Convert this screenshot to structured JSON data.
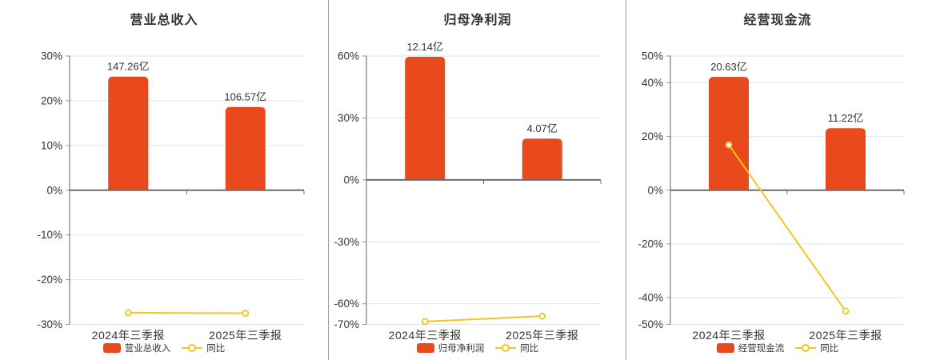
{
  "figure": {
    "background": "#ffffff",
    "divider_color": "#999999"
  },
  "palette": {
    "bar": "#e8491d",
    "line": "#f5c51d",
    "grid": "#dce4ee",
    "zero_axis": "#6b6b6b",
    "axis": "#606060",
    "tick": "#999999",
    "text": "#333333",
    "marker_fill": "#ffffff"
  },
  "chart_data": [
    {
      "type": "bar",
      "title": "营业总收入",
      "categories": [
        "2024年三季报",
        "2025年三季报"
      ],
      "ylim": [
        -30,
        30
      ],
      "grid": true,
      "legend_position": "bottom",
      "yticks": [
        {
          "label": "30%",
          "value": 30
        },
        {
          "label": "20%",
          "value": 20
        },
        {
          "label": "10%",
          "value": 10
        },
        {
          "label": "0%",
          "value": 0
        },
        {
          "label": "-10%",
          "value": -10
        },
        {
          "label": "-20%",
          "value": -20
        },
        {
          "label": "-30%",
          "value": -30
        }
      ],
      "series": [
        {
          "type": "bar",
          "name": "营业总收入",
          "values": [
            147.26,
            106.57
          ],
          "labels": [
            "147.26亿",
            "106.57亿"
          ],
          "plotted_pct": [
            25.4,
            18.6
          ]
        },
        {
          "type": "line",
          "name": "同比",
          "values_pct": [
            -27.4,
            -27.5
          ]
        }
      ]
    },
    {
      "type": "bar",
      "title": "归母净利润",
      "categories": [
        "2024年三季报",
        "2025年三季报"
      ],
      "ylim": [
        -70,
        60
      ],
      "grid": true,
      "legend_position": "bottom",
      "yticks": [
        {
          "label": "60%",
          "value": 60
        },
        {
          "label": "30%",
          "value": 30
        },
        {
          "label": "0%",
          "value": 0
        },
        {
          "label": "-30%",
          "value": -30
        },
        {
          "label": "-60%",
          "value": -60
        },
        {
          "label": "-70%",
          "value": -70
        }
      ],
      "series": [
        {
          "type": "bar",
          "name": "归母净利润",
          "values": [
            12.14,
            4.07
          ],
          "labels": [
            "12.14亿",
            "4.07亿"
          ],
          "plotted_pct": [
            59.6,
            20.0
          ]
        },
        {
          "type": "line",
          "name": "同比",
          "values_pct": [
            -68.6,
            -66.0
          ]
        }
      ]
    },
    {
      "type": "bar",
      "title": "经营现金流",
      "categories": [
        "2024年三季报",
        "2025年三季报"
      ],
      "ylim": [
        -50,
        50
      ],
      "grid": true,
      "legend_position": "bottom",
      "yticks": [
        {
          "label": "50%",
          "value": 50
        },
        {
          "label": "40%",
          "value": 40
        },
        {
          "label": "20%",
          "value": 20
        },
        {
          "label": "0%",
          "value": 0
        },
        {
          "label": "-20%",
          "value": -20
        },
        {
          "label": "-40%",
          "value": -40
        },
        {
          "label": "-50%",
          "value": -50
        }
      ],
      "series": [
        {
          "type": "bar",
          "name": "经营现金流",
          "values": [
            20.63,
            11.22
          ],
          "labels": [
            "20.63亿",
            "11.22亿"
          ],
          "plotted_pct": [
            42.2,
            23.1
          ]
        },
        {
          "type": "line",
          "name": "同比",
          "values_pct": [
            16.9,
            -45.0
          ]
        }
      ]
    }
  ]
}
